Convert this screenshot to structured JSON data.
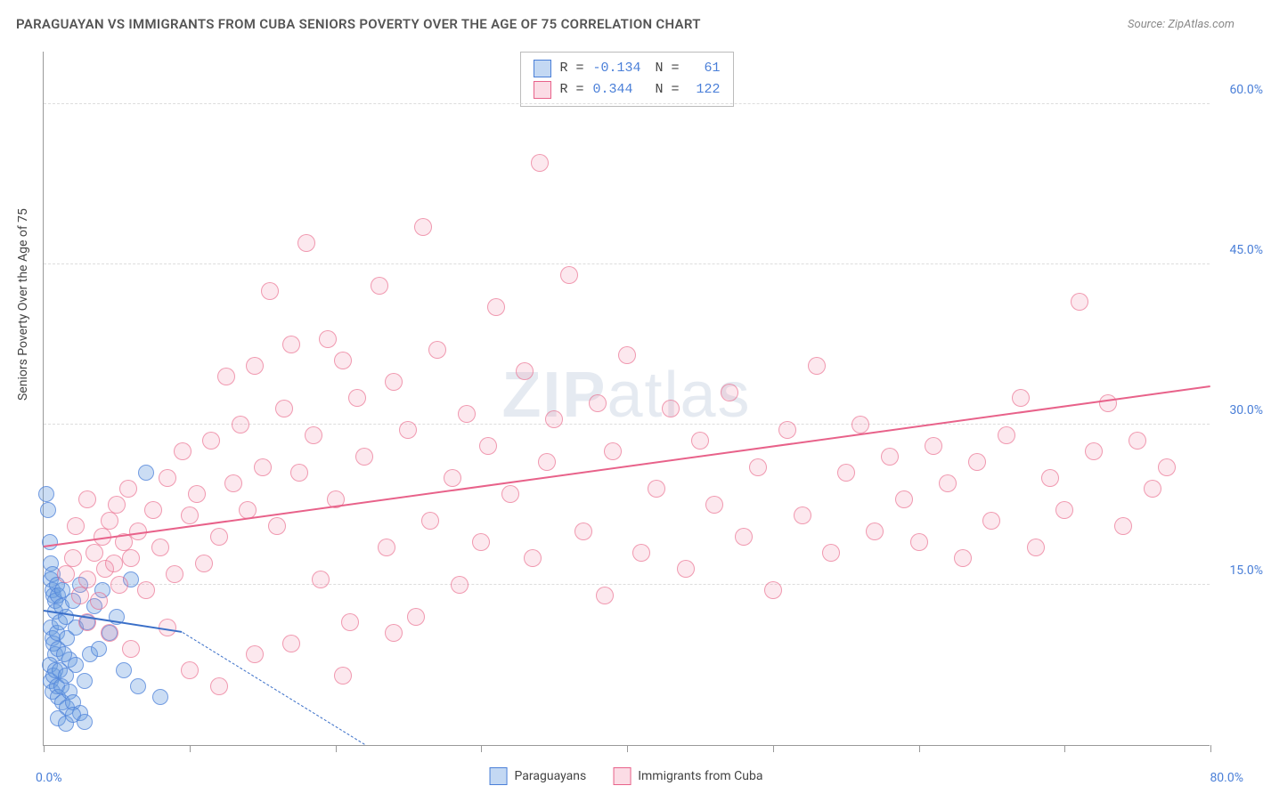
{
  "title": "PARAGUAYAN VS IMMIGRANTS FROM CUBA SENIORS POVERTY OVER THE AGE OF 75 CORRELATION CHART",
  "source": "Source: ZipAtlas.com",
  "y_axis_label": "Seniors Poverty Over the Age of 75",
  "watermark_part1": "ZIP",
  "watermark_part2": "atlas",
  "chart": {
    "type": "scatter",
    "xlim": [
      0,
      80
    ],
    "ylim": [
      0,
      65
    ],
    "x_origin_label": "0.0%",
    "x_max_label": "80.0%",
    "y_ticks": [
      {
        "v": 15,
        "label": "15.0%"
      },
      {
        "v": 30,
        "label": "30.0%"
      },
      {
        "v": 45,
        "label": "45.0%"
      },
      {
        "v": 60,
        "label": "60.0%"
      }
    ],
    "x_tick_positions": [
      0,
      10,
      20,
      30,
      40,
      50,
      60,
      70,
      80
    ],
    "grid_color": "#dddddd",
    "axis_color": "#999999",
    "background_color": "#ffffff"
  },
  "series": [
    {
      "name": "Paraguayans",
      "color_fill": "rgba(106,158,224,0.35)",
      "color_stroke": "#4a7fd8",
      "marker_radius": 9,
      "trend": {
        "x1": 0,
        "y1": 12.5,
        "x2": 9.5,
        "y2": 10.5,
        "solid": true,
        "dash_x2": 22,
        "dash_y2": 0,
        "width": 2.5,
        "color": "#3a6fc8"
      },
      "stats": {
        "R": "-0.134",
        "N": "61"
      },
      "points": [
        [
          0.2,
          23.5
        ],
        [
          0.3,
          22.0
        ],
        [
          0.4,
          19.0
        ],
        [
          0.5,
          17.0
        ],
        [
          0.5,
          15.5
        ],
        [
          0.6,
          14.5
        ],
        [
          0.6,
          16.0
        ],
        [
          0.7,
          14.0
        ],
        [
          0.8,
          13.5
        ],
        [
          0.8,
          12.5
        ],
        [
          0.9,
          15.0
        ],
        [
          1.0,
          14.0
        ],
        [
          0.5,
          11.0
        ],
        [
          0.6,
          10.0
        ],
        [
          0.7,
          9.5
        ],
        [
          0.8,
          8.5
        ],
        [
          0.9,
          10.5
        ],
        [
          1.0,
          9.0
        ],
        [
          1.1,
          11.5
        ],
        [
          1.2,
          13.0
        ],
        [
          1.3,
          14.5
        ],
        [
          1.5,
          12.0
        ],
        [
          1.6,
          10.0
        ],
        [
          1.8,
          8.0
        ],
        [
          2.0,
          13.5
        ],
        [
          2.2,
          11.0
        ],
        [
          2.5,
          15.0
        ],
        [
          0.4,
          7.5
        ],
        [
          0.5,
          6.0
        ],
        [
          0.6,
          5.0
        ],
        [
          0.7,
          6.5
        ],
        [
          0.8,
          7.0
        ],
        [
          0.9,
          5.5
        ],
        [
          1.0,
          4.5
        ],
        [
          1.1,
          7.0
        ],
        [
          1.2,
          5.5
        ],
        [
          1.3,
          4.0
        ],
        [
          1.4,
          8.5
        ],
        [
          1.5,
          6.5
        ],
        [
          1.6,
          3.5
        ],
        [
          1.8,
          5.0
        ],
        [
          2.0,
          4.0
        ],
        [
          2.2,
          7.5
        ],
        [
          2.5,
          3.0
        ],
        [
          2.8,
          6.0
        ],
        [
          3.0,
          11.5
        ],
        [
          3.2,
          8.5
        ],
        [
          3.5,
          13.0
        ],
        [
          3.8,
          9.0
        ],
        [
          4.0,
          14.5
        ],
        [
          4.5,
          10.5
        ],
        [
          5.0,
          12.0
        ],
        [
          5.5,
          7.0
        ],
        [
          6.0,
          15.5
        ],
        [
          6.5,
          5.5
        ],
        [
          7.0,
          25.5
        ],
        [
          8.0,
          4.5
        ],
        [
          1.0,
          2.5
        ],
        [
          1.5,
          2.0
        ],
        [
          2.0,
          2.8
        ],
        [
          2.8,
          2.2
        ]
      ]
    },
    {
      "name": "Immigrants from Cuba",
      "color_fill": "rgba(242,140,168,0.20)",
      "color_stroke": "#e8628a",
      "marker_radius": 10,
      "trend": {
        "x1": 0,
        "y1": 18.5,
        "x2": 80,
        "y2": 33.5,
        "solid": true,
        "width": 2,
        "color": "#e8628a"
      },
      "stats": {
        "R": "0.344",
        "N": "122"
      },
      "points": [
        [
          1.5,
          16.0
        ],
        [
          2.0,
          17.5
        ],
        [
          2.2,
          20.5
        ],
        [
          2.5,
          14.0
        ],
        [
          3.0,
          15.5
        ],
        [
          3.0,
          23.0
        ],
        [
          3.5,
          18.0
        ],
        [
          3.8,
          13.5
        ],
        [
          4.0,
          19.5
        ],
        [
          4.2,
          16.5
        ],
        [
          4.5,
          21.0
        ],
        [
          4.8,
          17.0
        ],
        [
          5.0,
          22.5
        ],
        [
          5.2,
          15.0
        ],
        [
          5.5,
          19.0
        ],
        [
          5.8,
          24.0
        ],
        [
          6.0,
          17.5
        ],
        [
          6.5,
          20.0
        ],
        [
          7.0,
          14.5
        ],
        [
          7.5,
          22.0
        ],
        [
          8.0,
          18.5
        ],
        [
          8.5,
          25.0
        ],
        [
          9.0,
          16.0
        ],
        [
          9.5,
          27.5
        ],
        [
          10.0,
          21.5
        ],
        [
          10.5,
          23.5
        ],
        [
          11.0,
          17.0
        ],
        [
          11.5,
          28.5
        ],
        [
          12.0,
          19.5
        ],
        [
          12.5,
          34.5
        ],
        [
          13.0,
          24.5
        ],
        [
          13.5,
          30.0
        ],
        [
          14.0,
          22.0
        ],
        [
          14.5,
          35.5
        ],
        [
          15.0,
          26.0
        ],
        [
          15.5,
          42.5
        ],
        [
          16.0,
          20.5
        ],
        [
          16.5,
          31.5
        ],
        [
          17.0,
          37.5
        ],
        [
          17.5,
          25.5
        ],
        [
          18.0,
          47.0
        ],
        [
          18.5,
          29.0
        ],
        [
          19.0,
          15.5
        ],
        [
          19.5,
          38.0
        ],
        [
          20.0,
          23.0
        ],
        [
          20.5,
          36.0
        ],
        [
          21.0,
          11.5
        ],
        [
          21.5,
          32.5
        ],
        [
          22.0,
          27.0
        ],
        [
          23.0,
          43.0
        ],
        [
          23.5,
          18.5
        ],
        [
          24.0,
          34.0
        ],
        [
          25.0,
          29.5
        ],
        [
          25.5,
          12.0
        ],
        [
          26.0,
          48.5
        ],
        [
          26.5,
          21.0
        ],
        [
          27.0,
          37.0
        ],
        [
          28.0,
          25.0
        ],
        [
          28.5,
          15.0
        ],
        [
          29.0,
          31.0
        ],
        [
          30.0,
          19.0
        ],
        [
          30.5,
          28.0
        ],
        [
          31.0,
          41.0
        ],
        [
          32.0,
          23.5
        ],
        [
          33.0,
          35.0
        ],
        [
          33.5,
          17.5
        ],
        [
          34.0,
          54.5
        ],
        [
          34.5,
          26.5
        ],
        [
          35.0,
          30.5
        ],
        [
          36.0,
          44.0
        ],
        [
          37.0,
          20.0
        ],
        [
          38.0,
          32.0
        ],
        [
          38.5,
          14.0
        ],
        [
          39.0,
          27.5
        ],
        [
          40.0,
          36.5
        ],
        [
          41.0,
          18.0
        ],
        [
          42.0,
          24.0
        ],
        [
          43.0,
          31.5
        ],
        [
          44.0,
          16.5
        ],
        [
          45.0,
          28.5
        ],
        [
          46.0,
          22.5
        ],
        [
          47.0,
          33.0
        ],
        [
          48.0,
          19.5
        ],
        [
          49.0,
          26.0
        ],
        [
          50.0,
          14.5
        ],
        [
          51.0,
          29.5
        ],
        [
          52.0,
          21.5
        ],
        [
          53.0,
          35.5
        ],
        [
          54.0,
          18.0
        ],
        [
          55.0,
          25.5
        ],
        [
          56.0,
          30.0
        ],
        [
          57.0,
          20.0
        ],
        [
          58.0,
          27.0
        ],
        [
          59.0,
          23.0
        ],
        [
          60.0,
          19.0
        ],
        [
          61.0,
          28.0
        ],
        [
          62.0,
          24.5
        ],
        [
          63.0,
          17.5
        ],
        [
          64.0,
          26.5
        ],
        [
          65.0,
          21.0
        ],
        [
          66.0,
          29.0
        ],
        [
          67.0,
          32.5
        ],
        [
          68.0,
          18.5
        ],
        [
          69.0,
          25.0
        ],
        [
          70.0,
          22.0
        ],
        [
          71.0,
          41.5
        ],
        [
          72.0,
          27.5
        ],
        [
          73.0,
          32.0
        ],
        [
          74.0,
          20.5
        ],
        [
          75.0,
          28.5
        ],
        [
          76.0,
          24.0
        ],
        [
          77.0,
          26.0
        ],
        [
          12.0,
          5.5
        ],
        [
          10.0,
          7.0
        ],
        [
          14.5,
          8.5
        ],
        [
          17.0,
          9.5
        ],
        [
          20.5,
          6.5
        ],
        [
          24.0,
          10.5
        ],
        [
          8.5,
          11.0
        ],
        [
          6.0,
          9.0
        ],
        [
          4.5,
          10.5
        ],
        [
          3.0,
          11.5
        ]
      ]
    }
  ],
  "stats_legend": {
    "r_label": "R =",
    "n_label": "N ="
  },
  "bottom_legend": {
    "items": [
      "Paraguayans",
      "Immigrants from Cuba"
    ]
  }
}
